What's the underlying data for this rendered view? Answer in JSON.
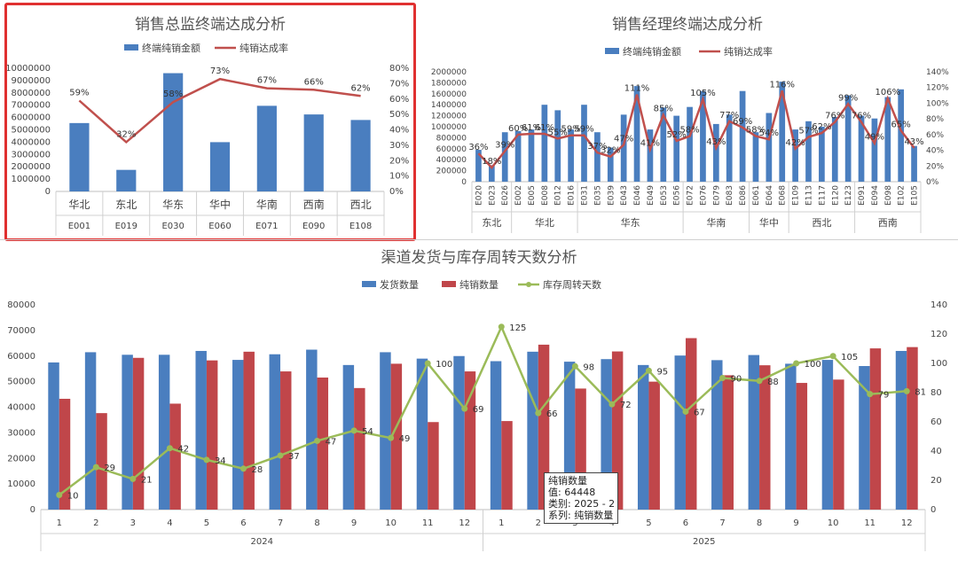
{
  "colors": {
    "bar_blue": "#4a7ebf",
    "bar_red": "#c0464a",
    "line_red": "#c0504d",
    "line_green": "#9bbb59",
    "frame": "#e03030"
  },
  "chart_data": [
    {
      "type": "bar",
      "title": "销售总监终端达成分析",
      "legend": [
        "终端纯销金额",
        "纯销达成率"
      ],
      "legend_position": "top",
      "regions": [
        "华北",
        "东北",
        "华东",
        "华中",
        "华南",
        "西南",
        "西北"
      ],
      "categories": [
        "E001",
        "E019",
        "E030",
        "E060",
        "E071",
        "E090",
        "E108"
      ],
      "series": [
        {
          "name": "终端纯销金额",
          "kind": "bar",
          "axis": "left",
          "values": [
            5550000,
            1750000,
            9600000,
            4000000,
            6950000,
            6250000,
            5800000
          ]
        },
        {
          "name": "纯销达成率",
          "kind": "line",
          "axis": "right",
          "values": [
            59,
            32,
            58,
            73,
            67,
            66,
            62
          ],
          "labels": [
            "59%",
            "32%",
            "58%",
            "73%",
            "67%",
            "66%",
            "62%"
          ]
        }
      ],
      "ylim_left": [
        0,
        10000000
      ],
      "ylim_right": [
        0,
        80
      ],
      "left_ticks": [
        "0",
        "1000000",
        "2000000",
        "3000000",
        "4000000",
        "5000000",
        "6000000",
        "7000000",
        "8000000",
        "9000000",
        "10000000"
      ],
      "right_ticks": [
        "0%",
        "10%",
        "20%",
        "30%",
        "40%",
        "50%",
        "60%",
        "70%",
        "80%"
      ]
    },
    {
      "type": "bar",
      "title": "销售经理终端达成分析",
      "legend": [
        "终端纯销金额",
        "纯销达成率"
      ],
      "legend_position": "top",
      "categories": [
        "E020",
        "E023",
        "E026",
        "E002",
        "E005",
        "E008",
        "E012",
        "E016",
        "E031",
        "E035",
        "E039",
        "E043",
        "E046",
        "E049",
        "E053",
        "E056",
        "E072",
        "E076",
        "E079",
        "E083",
        "E086",
        "E061",
        "E064",
        "E068",
        "E109",
        "E113",
        "E117",
        "E120",
        "E123",
        "E091",
        "E094",
        "E098",
        "E102",
        "E105"
      ],
      "groups": [
        {
          "name": "东北",
          "count": 3
        },
        {
          "name": "华北",
          "count": 5
        },
        {
          "name": "华东",
          "count": 8
        },
        {
          "name": "华南",
          "count": 5
        },
        {
          "name": "华中",
          "count": 3
        },
        {
          "name": "西北",
          "count": 5
        },
        {
          "name": "西南",
          "count": 5
        }
      ],
      "series": [
        {
          "name": "终端纯销金额",
          "kind": "bar",
          "axis": "left",
          "values": [
            580000,
            300000,
            900000,
            920000,
            950000,
            1400000,
            1300000,
            950000,
            1400000,
            900000,
            620000,
            1220000,
            1740000,
            950000,
            1350000,
            1200000,
            1360000,
            1650000,
            1050000,
            1220000,
            1650000,
            900000,
            1250000,
            1820000,
            950000,
            1100000,
            1000000,
            1180000,
            1570000,
            1200000,
            1150000,
            1540000,
            1680000,
            650000
          ]
        },
        {
          "name": "纯销达成率",
          "kind": "line",
          "axis": "right",
          "values": [
            36,
            18,
            39,
            60,
            61,
            61,
            55,
            59,
            59,
            37,
            32,
            47,
            111,
            41,
            85,
            52,
            58,
            105,
            43,
            77,
            69,
            58,
            54,
            116,
            42,
            57,
            62,
            76,
            99,
            76,
            49,
            106,
            65,
            43
          ],
          "labels": [
            "36%",
            "18%",
            "39%",
            "60%",
            "61%",
            "61%",
            "55%",
            "59%",
            "59%",
            "37%",
            "32%",
            "47%",
            "111%",
            "41%",
            "85%",
            "52%",
            "58%",
            "105%",
            "43%",
            "77%",
            "69%",
            "58%",
            "54%",
            "116%",
            "42%",
            "57%",
            "62%",
            "76%",
            "99%",
            "76%",
            "49%",
            "106%",
            "65%",
            "43%"
          ]
        }
      ],
      "ylim_left": [
        0,
        2000000
      ],
      "ylim_right": [
        0,
        140
      ],
      "left_ticks": [
        "0",
        "200000",
        "400000",
        "600000",
        "800000",
        "1000000",
        "1200000",
        "1400000",
        "1600000",
        "1800000",
        "2000000"
      ],
      "right_ticks": [
        "0%",
        "20%",
        "40%",
        "60%",
        "80%",
        "100%",
        "120%",
        "140%"
      ]
    },
    {
      "type": "bar",
      "title": "渠道发货与库存周转天数分析",
      "legend": [
        "发货数量",
        "纯销数量",
        "库存周转天数"
      ],
      "legend_position": "top",
      "categories": [
        "1",
        "2",
        "3",
        "4",
        "5",
        "6",
        "7",
        "8",
        "9",
        "10",
        "11",
        "12",
        "1",
        "2",
        "3",
        "4",
        "5",
        "6",
        "7",
        "8",
        "9",
        "10",
        "11",
        "12"
      ],
      "years": [
        {
          "name": "2024",
          "count": 12
        },
        {
          "name": "2025",
          "count": 12
        }
      ],
      "series": [
        {
          "name": "发货数量",
          "kind": "bar",
          "axis": "left",
          "values": [
            57500,
            61500,
            60500,
            60500,
            62000,
            58500,
            60700,
            62500,
            56500,
            61500,
            59000,
            60000,
            58000,
            61700,
            57800,
            58800,
            56500,
            60200,
            58400,
            60400,
            57000,
            58500,
            56100,
            62000
          ]
        },
        {
          "name": "纯销数量",
          "kind": "bar",
          "axis": "left",
          "values": [
            43300,
            37700,
            59300,
            41400,
            58300,
            61700,
            54000,
            51600,
            47500,
            57000,
            34200,
            54000,
            34600,
            64448,
            47300,
            61800,
            50000,
            67000,
            52500,
            56400,
            49500,
            50800,
            63000,
            63500
          ]
        },
        {
          "name": "库存周转天数",
          "kind": "line",
          "axis": "right",
          "values": [
            10,
            29,
            21,
            42,
            34,
            28,
            37,
            47,
            54,
            49,
            100,
            69,
            125,
            66,
            98,
            72,
            95,
            67,
            90,
            88,
            100,
            105,
            79,
            81
          ]
        }
      ],
      "ylim_left": [
        0,
        80000
      ],
      "ylim_right": [
        0,
        140
      ],
      "left_ticks": [
        "0",
        "10000",
        "20000",
        "30000",
        "40000",
        "50000",
        "60000",
        "70000",
        "80000"
      ],
      "right_ticks": [
        "0",
        "20",
        "40",
        "60",
        "80",
        "100",
        "120",
        "140"
      ]
    }
  ],
  "tooltip": {
    "series_title": "纯销数量",
    "value_line": "值: 64448",
    "category_line": "类别: 2025 - 2",
    "series_line": "系列: 纯销数量"
  }
}
